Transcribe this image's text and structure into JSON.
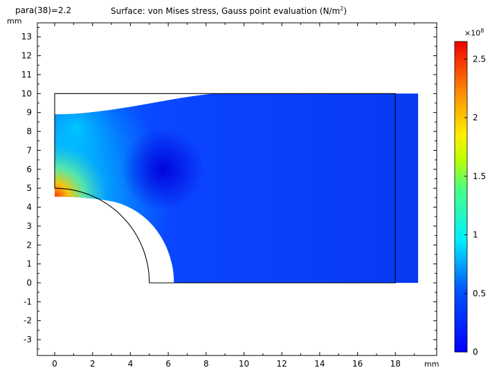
{
  "header": {
    "param_label": "para(38)=2.2",
    "title_text": "Surface: von Mises stress, Gauss point evaluation (N/m",
    "title_sup": "2",
    "title_close": ")"
  },
  "chart_data": {
    "type": "heatmap",
    "title": "Surface: von Mises stress, Gauss point evaluation (N/m²)",
    "parameter": "para(38)=2.2",
    "x_unit": "mm",
    "y_unit": "mm",
    "xlim": [
      -1,
      20
    ],
    "ylim": [
      -3.8,
      13.6
    ],
    "x_ticks": [
      0,
      2,
      4,
      6,
      8,
      10,
      12,
      14,
      16,
      18
    ],
    "y_ticks": [
      -3,
      -2,
      -1,
      0,
      1,
      2,
      3,
      4,
      5,
      6,
      7,
      8,
      9,
      10,
      11,
      12,
      13
    ],
    "grid": false,
    "colormap": "rainbow (blue-cyan-green-yellow-orange-red)",
    "colorbar": {
      "exponent_base": "×10",
      "exponent_power": "8",
      "ticks": [
        "0",
        "0.5",
        "1",
        "1.5",
        "2",
        "2.5"
      ],
      "min": 0,
      "max": 2.65,
      "location": "right"
    },
    "undeformed_outline": {
      "description": "plate with quarter circular hole",
      "rectangle_x": [
        0,
        18
      ],
      "rectangle_y": [
        0,
        10
      ],
      "hole_center": [
        0,
        0
      ],
      "hole_radius": 5
    },
    "deformed_shape": {
      "right_edge_x": 19.2,
      "hole_edge_at_x_axis": 6.3,
      "hole_edge_at_y_axis": 4.55,
      "top_left_y": 8.9,
      "top_right_y": 10
    },
    "stress_regions": [
      {
        "location": "hole edge near (0.5, 4.6)",
        "value_x1e8": 2.6
      },
      {
        "location": "left edge near (1, 8)",
        "value_x1e8": 0.6
      },
      {
        "location": "around (5.8, 6)",
        "value_x1e8": 0.1
      },
      {
        "location": "right region",
        "value_x1e8": 0.15
      }
    ],
    "colors": {
      "low": "#0000ff",
      "mid": "#00ffff",
      "high": "#ff0000"
    }
  }
}
